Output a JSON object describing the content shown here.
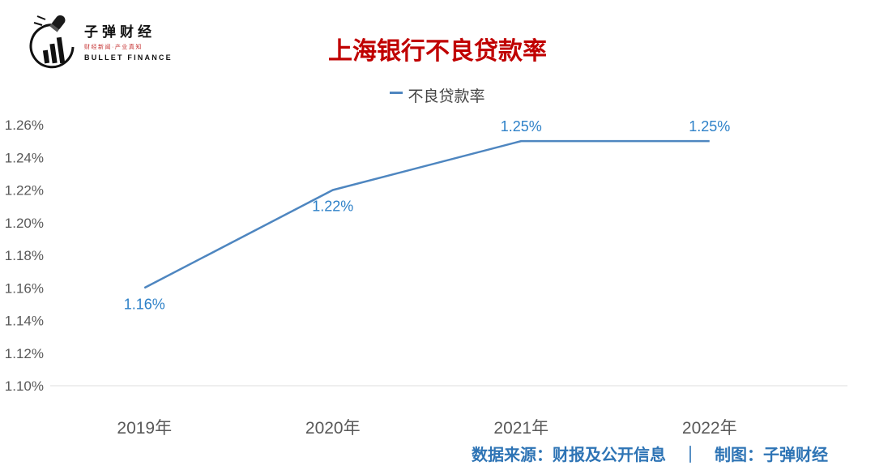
{
  "logo": {
    "name_cn": "子弹财经",
    "slogan": "财经新闻·产业真知",
    "name_en": "BULLET FINANCE"
  },
  "title": "上海银行不良贷款率",
  "legend": {
    "label": "不良贷款率",
    "marker_color": "#4e86c0"
  },
  "footer": {
    "text": "数据来源：财报及公开信息　｜　制图：子弹财经"
  },
  "chart_data": {
    "type": "line",
    "title": "上海银行不良贷款率",
    "categories": [
      "2019年",
      "2020年",
      "2021年",
      "2022年"
    ],
    "series": [
      {
        "name": "不良贷款率",
        "values": [
          1.16,
          1.22,
          1.25,
          1.25
        ]
      }
    ],
    "data_labels": [
      "1.16%",
      "1.22%",
      "1.25%",
      "1.25%"
    ],
    "label_positions": [
      "below",
      "below",
      "above",
      "above"
    ],
    "y_ticks": [
      "1.26%",
      "1.24%",
      "1.22%",
      "1.20%",
      "1.18%",
      "1.16%",
      "1.14%",
      "1.12%",
      "1.10%"
    ],
    "ylim": [
      1.1,
      1.26
    ],
    "xlabel": "",
    "ylabel": "",
    "grid": false,
    "legend_position": "top-center",
    "line_color": "#4e86c0",
    "label_color": "#2e81c8",
    "axis_text_color": "#595959",
    "axis_line_color": "#dcdcdc"
  }
}
